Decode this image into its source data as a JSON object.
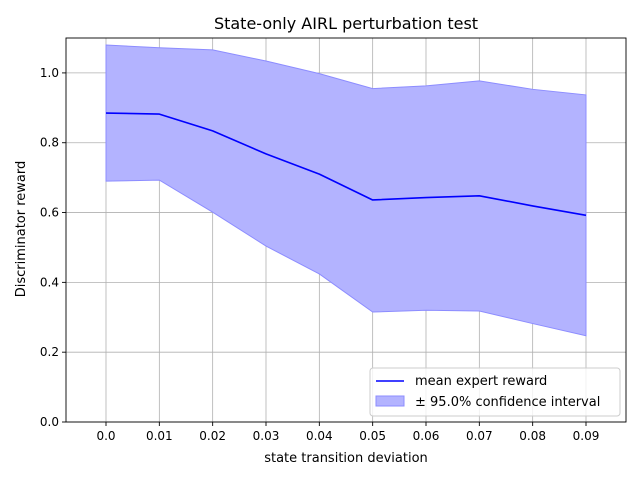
{
  "chart_data": {
    "type": "line",
    "title": "State-only AIRL perturbation test",
    "xlabel": "state transition deviation",
    "ylabel": "Discriminator reward",
    "x": [
      0.0,
      0.01,
      0.02,
      0.03,
      0.04,
      0.05,
      0.06,
      0.07,
      0.08,
      0.09
    ],
    "x_tick_labels": [
      "0.0",
      "0.01",
      "0.02",
      "0.03",
      "0.04",
      "0.05",
      "0.06",
      "0.07",
      "0.08",
      "0.09"
    ],
    "y_ticks": [
      0.0,
      0.2,
      0.4,
      0.6,
      0.8,
      1.0
    ],
    "y_tick_labels": [
      "0.0",
      "0.2",
      "0.4",
      "0.6",
      "0.8",
      "1.0"
    ],
    "xlim": [
      -0.0075,
      0.0975
    ],
    "ylim": [
      0.0,
      1.1
    ],
    "grid": true,
    "legend_position": "lower-right",
    "series": [
      {
        "name": "mean expert reward",
        "color": "#0000ff",
        "values": [
          0.885,
          0.882,
          0.834,
          0.768,
          0.71,
          0.636,
          0.643,
          0.648,
          0.619,
          0.592
        ]
      }
    ],
    "band": {
      "name": "± 95.0% confidence interval",
      "fill_color": "#b3b3ff",
      "edge_color": "#8c8cff",
      "upper": [
        1.08,
        1.072,
        1.066,
        1.034,
        0.998,
        0.955,
        0.963,
        0.977,
        0.953,
        0.937
      ],
      "lower": [
        0.69,
        0.693,
        0.601,
        0.504,
        0.424,
        0.315,
        0.32,
        0.318,
        0.282,
        0.247
      ]
    }
  }
}
